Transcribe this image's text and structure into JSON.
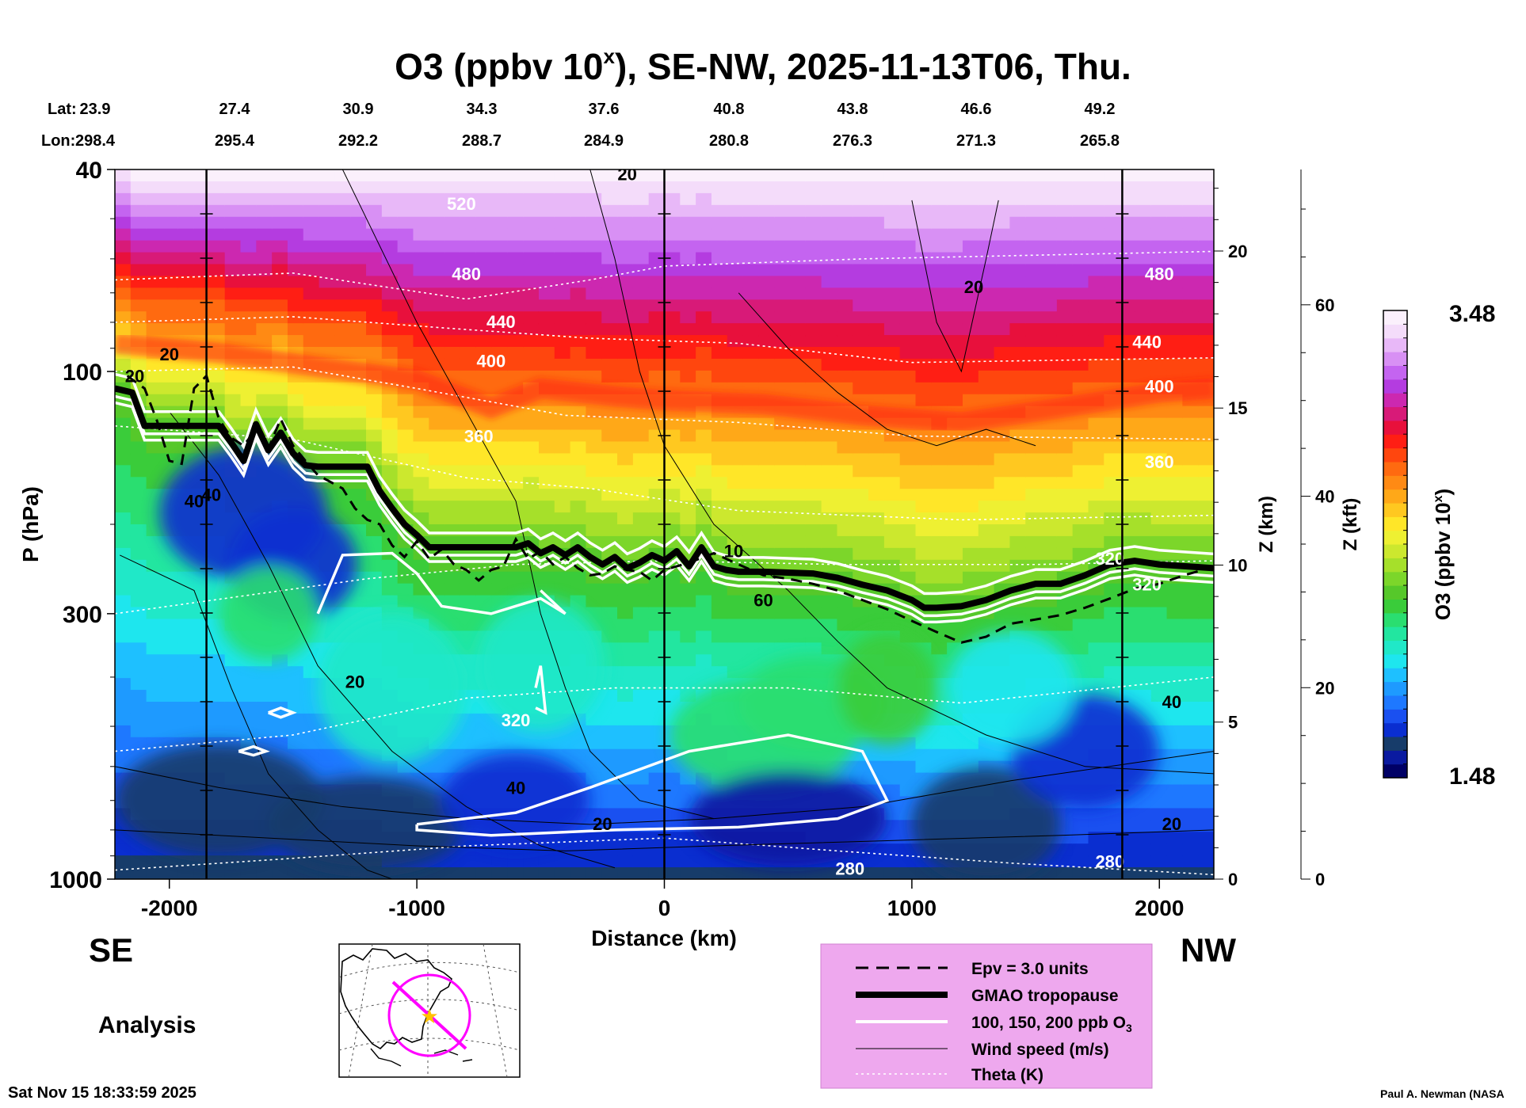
{
  "chart_data": {
    "type": "heatmap",
    "title_main": "O3 (ppbv 10",
    "title_sup": "x",
    "title_rest": "), SE-NW, 2025-11-13T06, Thu.",
    "lat_label": "Lat:",
    "lon_label": "Lon:",
    "lat_ticks": [
      "23.9",
      "27.4",
      "30.9",
      "34.3",
      "37.6",
      "40.8",
      "43.8",
      "46.6",
      "49.2"
    ],
    "lon_ticks": [
      "298.4",
      "295.4",
      "292.2",
      "288.7",
      "284.9",
      "280.8",
      "276.3",
      "271.3",
      "265.8"
    ],
    "xlabel": "Distance (km)",
    "xlim": [
      -2220,
      2220
    ],
    "xticks": [
      -2000,
      -1000,
      0,
      1000,
      2000
    ],
    "xtick_labels": [
      "-2000",
      "-1000",
      "0",
      "1000",
      "2000"
    ],
    "ylabel": "P (hPa)",
    "ylim": [
      1000,
      40
    ],
    "yticks": [
      40,
      100,
      300,
      1000
    ],
    "ytick_labels": [
      "40",
      "100",
      "300",
      "1000"
    ],
    "z_km_label": "Z (km)",
    "z_km_ticks": [
      0,
      5,
      10,
      15,
      20
    ],
    "z_km_labels": [
      "0",
      "5",
      "10",
      "15",
      "20"
    ],
    "z_kft_label": "Z (kft)",
    "z_kft_ticks": [
      0,
      20,
      40,
      60
    ],
    "z_kft_labels": [
      "0",
      "20",
      "40",
      "60"
    ],
    "colorbar": {
      "label": "O3 (ppbv 10",
      "label_sup": "x",
      "label_close": ")",
      "max_label": "3.48",
      "min_label": "1.48",
      "range": [
        1.48,
        3.48
      ],
      "colors": [
        "#000066",
        "#0a1aa0",
        "#173c6a",
        "#0a2ed0",
        "#1a50f0",
        "#1e78ff",
        "#1e9aff",
        "#1ec0ff",
        "#1ee6ee",
        "#20e8c8",
        "#22e6a0",
        "#2ade70",
        "#3acc3a",
        "#56c82a",
        "#7cd62a",
        "#a6e02a",
        "#cce82e",
        "#eef032",
        "#ffe628",
        "#ffc820",
        "#ffa818",
        "#ff8a14",
        "#ff6a10",
        "#ff460e",
        "#ff1e14",
        "#e8103c",
        "#d81a78",
        "#cc28b0",
        "#b43ce0",
        "#c464f0",
        "#d890f4",
        "#e8b8f8",
        "#f4dcfa",
        "#fbf0fc"
      ]
    },
    "vertical_markers_km": [
      -1850,
      0,
      1850
    ],
    "tropopause": {
      "x": [
        -2220,
        -2150,
        -2100,
        -1800,
        -1750,
        -1700,
        -1650,
        -1600,
        -1550,
        -1500,
        -1450,
        -1400,
        -1200,
        -1150,
        -1100,
        -1050,
        -1000,
        -950,
        -900,
        -600,
        -550,
        -500,
        -450,
        -400,
        -350,
        -300,
        -250,
        -200,
        -150,
        -100,
        -50,
        0,
        50,
        100,
        150,
        200,
        250,
        300,
        400,
        600,
        700,
        800,
        900,
        1000,
        1050,
        1100,
        1200,
        1300,
        1400,
        1500,
        1600,
        1700,
        1800,
        1900,
        2000,
        2220
      ],
      "p": [
        108,
        110,
        128,
        128,
        138,
        150,
        127,
        143,
        132,
        145,
        153,
        154,
        154,
        172,
        186,
        200,
        210,
        222,
        222,
        222,
        218,
        228,
        222,
        230,
        222,
        232,
        240,
        232,
        244,
        238,
        230,
        236,
        226,
        242,
        222,
        242,
        246,
        248,
        248,
        250,
        255,
        263,
        270,
        282,
        292,
        292,
        290,
        282,
        270,
        262,
        262,
        252,
        240,
        236,
        240,
        244
      ]
    },
    "epv_line": {
      "x": [
        -2170,
        -2100,
        -2050,
        -2000,
        -1950,
        -1900,
        -1850,
        -1800,
        -1750,
        -1700,
        -1650,
        -1600,
        -1550,
        -1500,
        -1450,
        -1400,
        -1300,
        -1250,
        -1200,
        -1150,
        -1100,
        -1050,
        -1000,
        -950,
        -900,
        -850,
        -800,
        -750,
        -700,
        -650,
        -600,
        -550,
        -500,
        -450,
        -400,
        -350,
        -300,
        -250,
        -200,
        -150,
        -100,
        -50,
        0,
        100,
        200,
        300,
        400,
        500,
        600,
        700,
        800,
        900,
        1000,
        1100,
        1200,
        1300,
        1400,
        1500,
        1600,
        1700,
        1800,
        1900,
        2000,
        2100,
        2200
      ],
      "p": [
        102,
        108,
        125,
        150,
        152,
        108,
        102,
        124,
        135,
        140,
        130,
        142,
        124,
        140,
        150,
        160,
        170,
        186,
        196,
        200,
        220,
        232,
        216,
        234,
        224,
        240,
        246,
        258,
        246,
        242,
        214,
        234,
        226,
        240,
        232,
        244,
        252,
        250,
        242,
        246,
        248,
        258,
        246,
        238,
        228,
        240,
        252,
        256,
        262,
        270,
        282,
        294,
        310,
        326,
        342,
        333,
        314,
        308,
        302,
        292,
        280,
        268,
        262,
        252,
        244
      ]
    },
    "contour_labels": {
      "theta": [
        "520",
        "480",
        "440",
        "400",
        "360",
        "320",
        "280",
        "400",
        "440",
        "480",
        "360",
        "320",
        "280",
        "320"
      ],
      "wind": [
        "20",
        "20",
        "40",
        "20",
        "20",
        "40",
        "20",
        "60",
        "40",
        "20",
        "20",
        "40",
        "10"
      ]
    },
    "region_left": "SE",
    "region_right": "NW",
    "analysis_label": "Analysis",
    "timestamp": "Sat Nov 15 18:33:59 2025",
    "credit": "Paul A. Newman (NASA",
    "legend": {
      "position": "bottom-center",
      "items": [
        {
          "label": "Epv = 3.0 units",
          "style": "dashed"
        },
        {
          "label": "GMAO tropopause",
          "style": "thick"
        },
        {
          "label": "100, 150, 200 ppb O",
          "sub": "3",
          "style": "white"
        },
        {
          "label": "Wind speed (m/s)",
          "style": "thin"
        },
        {
          "label": "Theta (K)",
          "style": "dotted"
        }
      ]
    },
    "colors": {
      "legend_background": "#eea8ee",
      "section_line": "#ff00ff",
      "star": "#ffc000"
    }
  }
}
